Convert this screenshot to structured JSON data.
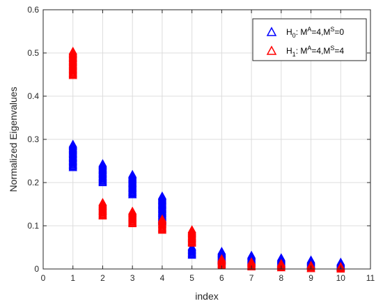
{
  "chart_data": {
    "type": "scatter",
    "title": "",
    "xlabel": "index",
    "ylabel": "Normalized Eigenvalues",
    "xlim": [
      0,
      11
    ],
    "ylim": [
      0,
      0.6
    ],
    "xticks": [
      0,
      1,
      2,
      3,
      4,
      5,
      6,
      7,
      8,
      9,
      10,
      11
    ],
    "yticks": [
      0,
      0.1,
      0.2,
      0.3,
      0.4,
      0.5,
      0.6
    ],
    "xtick_labels": [
      "0",
      "1",
      "2",
      "3",
      "4",
      "5",
      "6",
      "7",
      "8",
      "9",
      "10",
      "11"
    ],
    "ytick_labels": [
      "0",
      "0.1",
      "0.2",
      "0.3",
      "0.4",
      "0.5",
      "0.6"
    ],
    "grid": true,
    "legend_position": "top-right",
    "marker": "triangle-up",
    "series": [
      {
        "legend": {
          "h": "H",
          "sub": "0",
          "p1": ": M",
          "sup1": "A",
          "p2": "=4,M",
          "sup2": "S",
          "p3": "=0"
        },
        "color": "#0000ff",
        "x": [
          1,
          2,
          3,
          4,
          5,
          6,
          7,
          8,
          9,
          10
        ],
        "y_min": [
          0.235,
          0.2,
          0.172,
          0.11,
          0.032,
          0.018,
          0.014,
          0.01,
          0.007,
          0.004
        ],
        "y_max": [
          0.29,
          0.245,
          0.22,
          0.17,
          0.052,
          0.042,
          0.033,
          0.027,
          0.022,
          0.017
        ]
      },
      {
        "legend": {
          "h": "H",
          "sub": "1",
          "p1": ": M",
          "sup1": "A",
          "p2": "=4,M",
          "sup2": "S",
          "p3": "=4"
        },
        "color": "#ff0000",
        "x": [
          1,
          2,
          3,
          4,
          5,
          6,
          7,
          8,
          9,
          10
        ],
        "y_min": [
          0.448,
          0.123,
          0.105,
          0.09,
          0.06,
          0.008,
          0.005,
          0.003,
          0.001,
          0.0
        ],
        "y_max": [
          0.505,
          0.155,
          0.135,
          0.117,
          0.092,
          0.025,
          0.018,
          0.014,
          0.01,
          0.007
        ]
      }
    ]
  }
}
